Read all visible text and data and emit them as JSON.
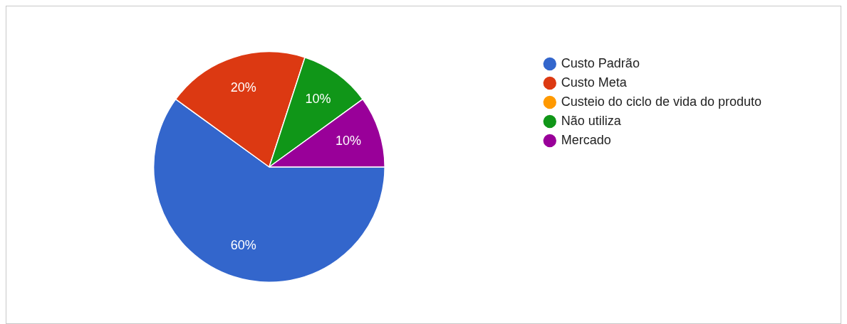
{
  "chart_data": {
    "type": "pie",
    "categories": [
      "Custo Padrão",
      "Custo Meta",
      "Custeio do ciclo de vida do produto",
      "Não utiliza",
      "Mercado"
    ],
    "values": [
      60,
      20,
      0,
      10,
      10
    ],
    "colors": [
      "#3366cc",
      "#dc3912",
      "#ff9900",
      "#109618",
      "#990099"
    ],
    "value_labels": [
      "60%",
      "20%",
      null,
      "10%",
      "10%"
    ],
    "legend": "right"
  }
}
